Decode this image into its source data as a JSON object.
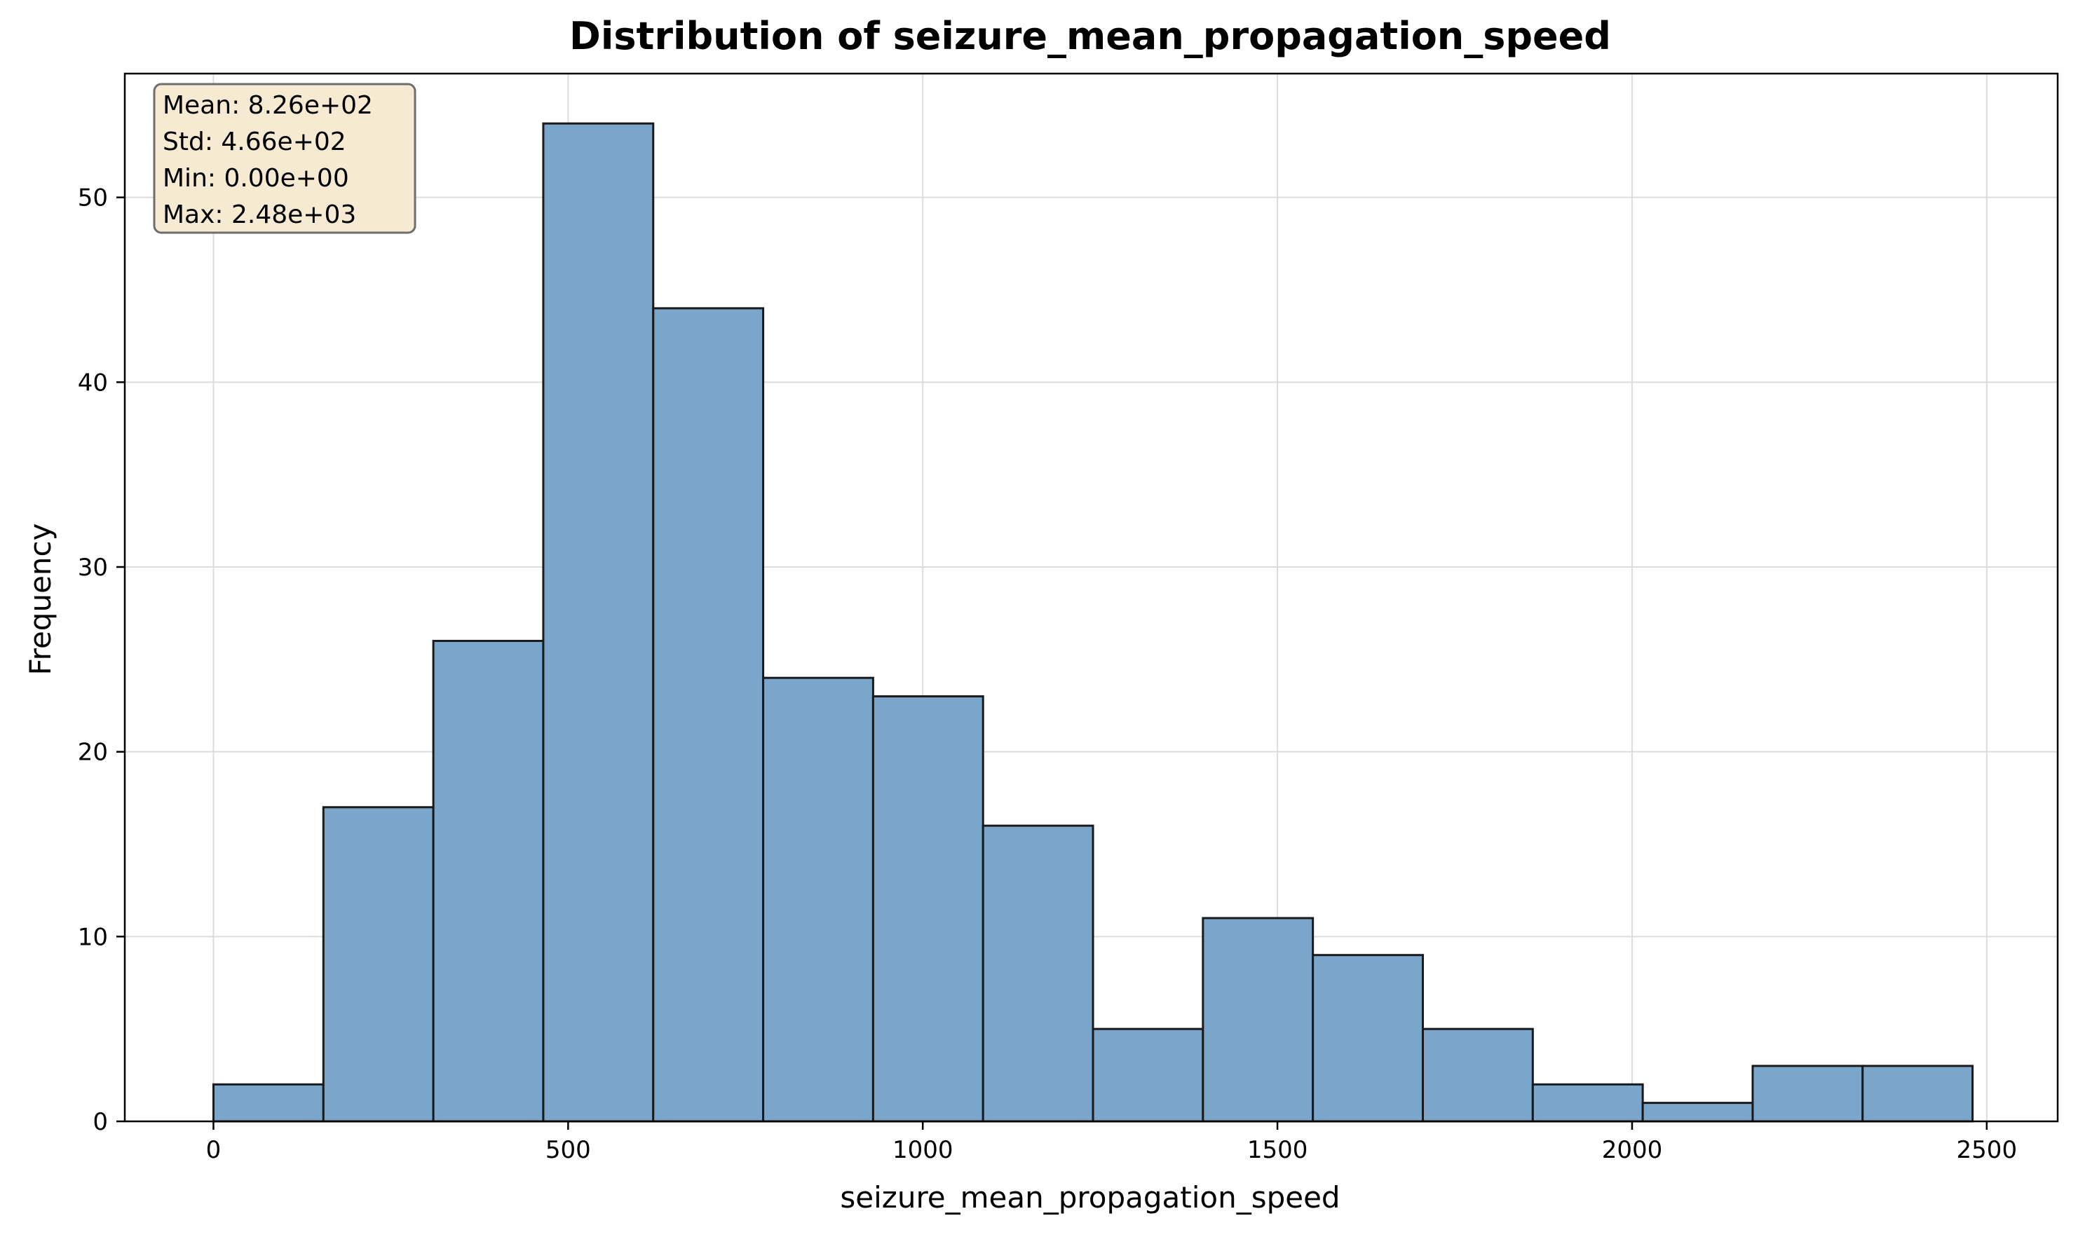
{
  "chart_data": {
    "type": "bar",
    "title": "Distribution of seizure_mean_propagation_speed",
    "xlabel": "seizure_mean_propagation_speed",
    "ylabel": "Frequency",
    "xlim": [
      -125,
      2600
    ],
    "ylim": [
      0,
      56.7
    ],
    "xticks": [
      0,
      500,
      1000,
      1500,
      2000,
      2500
    ],
    "yticks": [
      0,
      10,
      20,
      30,
      40,
      50
    ],
    "grid": true,
    "bin_edges": [
      0,
      155,
      310,
      465,
      620,
      775,
      930,
      1085,
      1240,
      1395,
      1550,
      1705,
      1860,
      2015,
      2170,
      2325,
      2480
    ],
    "values": [
      2,
      17,
      26,
      54,
      44,
      24,
      23,
      16,
      5,
      11,
      9,
      5,
      2,
      1,
      3,
      3
    ],
    "bar_color": "#7ba6cb",
    "edge_color": "#1a1a1a",
    "stats_box": {
      "lines": [
        "Mean: 8.26e+02",
        "Std: 4.66e+02",
        "Min: 0.00e+00",
        "Max: 2.48e+03"
      ],
      "placement": "top-left",
      "background": "#f6ead3"
    }
  }
}
